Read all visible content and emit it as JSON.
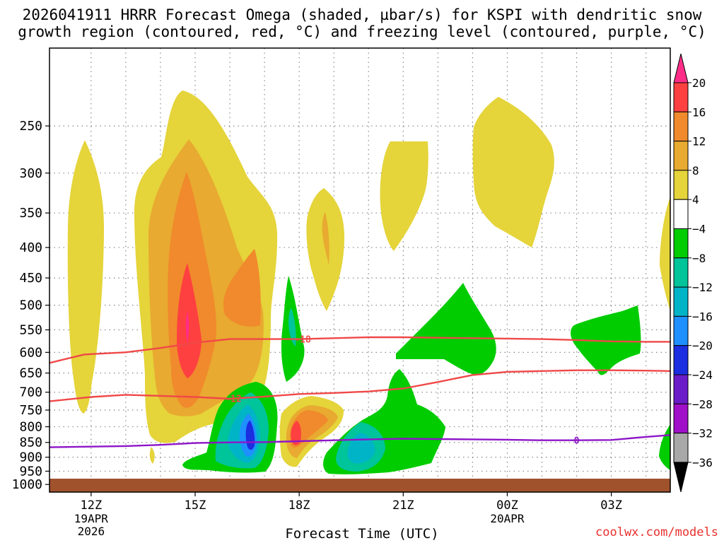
{
  "title": {
    "line1": "2026041911 HRRR Forecast Omega (shaded, µbar/s) for KSPI with dendritic snow",
    "line2": "growth region (contoured, red, °C) and freezing level (contoured, purple, °C)"
  },
  "credit": "coolwx.com/models",
  "chart_data": {
    "type": "time-height cross-section (filled contour)",
    "title": "2026041911 HRRR Forecast Omega (shaded, µbar/s) for KSPI with dendritic snow growth region (contoured, red, °C) and freezing level (contoured, purple, °C)",
    "xlabel": "Forecast Time (UTC)",
    "ylabel": "",
    "x_range_hours_from_12Z": [
      -1.2,
      16.7
    ],
    "y_range_hPa": [
      185,
      1030
    ],
    "y_ticks": [
      250,
      300,
      350,
      400,
      450,
      500,
      550,
      600,
      650,
      700,
      750,
      800,
      850,
      900,
      950,
      1000
    ],
    "x_ticks": [
      {
        "hour": 0,
        "label": "12Z",
        "sub1": "19APR",
        "sub2": "2026"
      },
      {
        "hour": 3,
        "label": "15Z",
        "sub1": "",
        "sub2": ""
      },
      {
        "hour": 6,
        "label": "18Z",
        "sub1": "",
        "sub2": ""
      },
      {
        "hour": 9,
        "label": "21Z",
        "sub1": "",
        "sub2": ""
      },
      {
        "hour": 12,
        "label": "00Z",
        "sub1": "20APR",
        "sub2": ""
      },
      {
        "hour": 15,
        "label": "03Z",
        "sub1": "",
        "sub2": ""
      }
    ],
    "colorbar": {
      "levels": [
        20,
        16,
        12,
        8,
        4,
        -4,
        -8,
        -12,
        -16,
        -20,
        -24,
        -28,
        -32,
        -36
      ],
      "colors": [
        "#ff2d87",
        "#ff4040",
        "#f08a2c",
        "#e8aa30",
        "#e5d43a",
        "#ffffff",
        "#00cc00",
        "#00c49a",
        "#00b4c8",
        "#1e90ff",
        "#1b2ee0",
        "#6a1cc8",
        "#9f10c8",
        "#a8a8a8",
        "#000000"
      ]
    },
    "omega_features": [
      {
        "name": "rising column near 15Z",
        "center_hour": 3.0,
        "center_hPa": 560,
        "peak_ubar_s": 20,
        "type": "positive"
      },
      {
        "name": "upper band near 12Z",
        "center_hour": 0.1,
        "center_hPa": 520,
        "peak_ubar_s": 6,
        "type": "positive"
      },
      {
        "name": "upper lobe near 16.5Z",
        "center_hour": 4.5,
        "center_hPa": 520,
        "peak_ubar_s": 14,
        "type": "positive"
      },
      {
        "name": "low-level max near 18Z",
        "center_hour": 6.1,
        "center_hPa": 830,
        "peak_ubar_s": 16,
        "type": "positive"
      },
      {
        "name": "upper blob near 21Z",
        "center_hour": 9.3,
        "center_hPa": 330,
        "peak_ubar_s": 6,
        "type": "positive"
      },
      {
        "name": "upper blob near 00Z",
        "center_hour": 12.1,
        "center_hPa": 320,
        "peak_ubar_s": 6,
        "type": "positive"
      },
      {
        "name": "low-level min near 17Z",
        "center_hour": 4.9,
        "center_hPa": 855,
        "peak_ubar_s": -24,
        "type": "negative"
      },
      {
        "name": "low-level min near 20Z",
        "center_hour": 8.0,
        "center_hPa": 905,
        "peak_ubar_s": -16,
        "type": "negative"
      },
      {
        "name": "mid-level min near 22Z",
        "center_hour": 10.5,
        "center_hPa": 600,
        "peak_ubar_s": -8,
        "type": "negative"
      }
    ],
    "series": [
      {
        "name": "-18 °C isotherm (DGZ top)",
        "color": "#f04848",
        "label": "-18",
        "label_hour": 6.1,
        "hours": [
          -1.2,
          -0.2,
          1.0,
          2.0,
          3.0,
          4.0,
          5.0,
          6.0,
          7.0,
          8.0,
          9.0,
          10.0,
          11.0,
          12.0,
          13.0,
          14.0,
          15.0,
          16.0,
          16.7
        ],
        "hPa": [
          625,
          605,
          600,
          590,
          578,
          570,
          570,
          570,
          568,
          566,
          566,
          567,
          568,
          569,
          570,
          572,
          575,
          576,
          576
        ]
      },
      {
        "name": "-12 °C isotherm (DGZ bottom)",
        "color": "#f04848",
        "label": "-12",
        "label_hour": 4.1,
        "hours": [
          -1.2,
          0.0,
          1.0,
          2.0,
          3.0,
          4.0,
          5.0,
          6.0,
          7.0,
          8.0,
          9.0,
          10.0,
          11.0,
          12.0,
          13.0,
          14.0,
          15.0,
          16.0,
          16.7
        ],
        "hPa": [
          725,
          713,
          707,
          710,
          713,
          718,
          712,
          705,
          702,
          698,
          690,
          673,
          655,
          647,
          645,
          643,
          643,
          644,
          645
        ]
      },
      {
        "name": "0 °C isotherm (freezing level)",
        "color": "#8e16c8",
        "label": "0",
        "label_hour": 14.0,
        "hours": [
          -1.2,
          0.0,
          1.0,
          2.0,
          3.0,
          4.0,
          5.0,
          6.0,
          7.0,
          8.0,
          9.0,
          10.0,
          11.0,
          12.0,
          13.0,
          14.0,
          15.0,
          16.0,
          16.7
        ],
        "hPa": [
          866,
          864,
          862,
          858,
          852,
          850,
          849,
          846,
          843,
          840,
          838,
          839,
          840,
          841,
          843,
          843,
          842,
          832,
          826
        ]
      }
    ]
  }
}
